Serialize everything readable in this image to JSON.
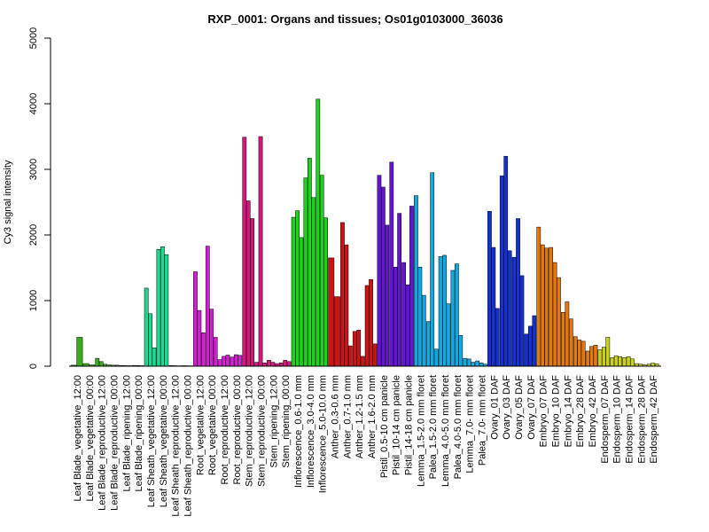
{
  "chart_data": {
    "type": "bar",
    "title": "RXP_0001: Organs and tissues; Os01g0103000_36036",
    "xlabel": "",
    "ylabel": "Cy3 signal intensity",
    "ylim": [
      0,
      5000
    ],
    "yticks": [
      0,
      1000,
      2000,
      3000,
      4000,
      5000
    ],
    "grid": false,
    "legend": "none",
    "groups": [
      {
        "label": "Leaf Blade_vegetative_12:00",
        "color": "#3aad1c",
        "values": [
          15,
          440
        ]
      },
      {
        "label": "Leaf Blade_vegetative_00:00",
        "color": "#3aad1c",
        "values": [
          40,
          20
        ]
      },
      {
        "label": "Leaf Blade_reproductive_12:00",
        "color": "#3aad1c",
        "values": [
          120,
          70,
          30
        ]
      },
      {
        "label": "Leaf Blade_reproductive_00:00",
        "color": "#3aad1c",
        "values": [
          20,
          15,
          15
        ]
      },
      {
        "label": "Leaf Blade_ripening_12:00",
        "color": "#3aad1c",
        "values": [
          10,
          8
        ]
      },
      {
        "label": "Leaf Blade_ripening_00:00",
        "color": "#3aad1c",
        "values": [
          12,
          10,
          8
        ]
      },
      {
        "label": "Leaf Sheath_vegetative_12:00",
        "color": "#1ed98f",
        "values": [
          1190,
          800,
          280
        ]
      },
      {
        "label": "Leaf Sheath_vegetative_00:00",
        "color": "#1ed98f",
        "values": [
          1780,
          1820,
          1700
        ]
      },
      {
        "label": "Leaf Sheath_reproductive_12:00",
        "color": "#1ed98f",
        "values": [
          10,
          8,
          6
        ]
      },
      {
        "label": "Leaf Sheath_reproductive_00:00",
        "color": "#1ed98f",
        "values": [
          8,
          6
        ]
      },
      {
        "label": "Root_vegetative_12:00",
        "color": "#d21fd2",
        "values": [
          1440,
          850,
          510
        ]
      },
      {
        "label": "Root_vegetative_00:00",
        "color": "#d21fd2",
        "values": [
          1830,
          870,
          440
        ]
      },
      {
        "label": "Root_reproductive_12:00",
        "color": "#d21fd2",
        "values": [
          100,
          150,
          170
        ]
      },
      {
        "label": "Root_reproductive_00:00",
        "color": "#d21fd2",
        "values": [
          140,
          175,
          165
        ]
      },
      {
        "label": "Stem_reproductive_12:00",
        "color": "#d2187a",
        "values": [
          3490,
          2520,
          2250
        ]
      },
      {
        "label": "Stem_reproductive_00:00",
        "color": "#d2187a",
        "values": [
          60,
          3500,
          50
        ]
      },
      {
        "label": "Stem_ripening_12:00",
        "color": "#d2187a",
        "values": [
          90,
          60,
          40
        ]
      },
      {
        "label": "Stem_ripening_00:00",
        "color": "#d2187a",
        "values": [
          50,
          90,
          70
        ]
      },
      {
        "label": "Inflorescence_0.6-1.0 mm",
        "color": "#1ed21e",
        "values": [
          2270,
          2370,
          1960
        ]
      },
      {
        "label": "Inflorescence_3.0-4.0 mm",
        "color": "#1ed21e",
        "values": [
          2870,
          3170,
          2570
        ]
      },
      {
        "label": "Inflorescence_5.0-10.0 mm",
        "color": "#1ed21e",
        "values": [
          4070,
          2910,
          2260
        ]
      },
      {
        "label": "Anther_0.3-0.6 mm",
        "color": "#cc1414",
        "values": [
          1650,
          1060
        ]
      },
      {
        "label": "Anther_0.7-1.0 mm",
        "color": "#cc1414",
        "values": [
          2190,
          1850,
          310
        ]
      },
      {
        "label": "Anther_1.2-1.5 mm",
        "color": "#cc1414",
        "values": [
          530,
          550,
          150
        ]
      },
      {
        "label": "Anther_1.6-2.0 mm",
        "color": "#cc1414",
        "values": [
          1230,
          1320,
          340
        ]
      },
      {
        "label": "Pistil_0.5-10 cm panicle",
        "color": "#6414d2",
        "values": [
          2910,
          2730,
          2150
        ]
      },
      {
        "label": "Pistil_10-14 cm panicle",
        "color": "#6414d2",
        "values": [
          3110,
          1510,
          2330
        ]
      },
      {
        "label": "Pistil_14-18 cm panicle",
        "color": "#6414d2",
        "values": [
          1580,
          1240,
          2440
        ]
      },
      {
        "label": "Lemma_1.5-2.0 mm floret",
        "color": "#14a8e0",
        "values": [
          2600,
          1510,
          1080
        ]
      },
      {
        "label": "Palea_1.5-2.0 mm floret",
        "color": "#14a8e0",
        "values": [
          680,
          2950,
          260
        ]
      },
      {
        "label": "Lemma_4.0-5.0 mm floret",
        "color": "#14a8e0",
        "values": [
          1670,
          1690,
          950
        ]
      },
      {
        "label": "Palea_4.0-5.0 mm floret",
        "color": "#14a8e0",
        "values": [
          1460,
          1560,
          470
        ]
      },
      {
        "label": "Lemma_7.0- mm floret",
        "color": "#14a8e0",
        "values": [
          120,
          110,
          60
        ]
      },
      {
        "label": "Palea_7.0- mm floret",
        "color": "#14a8e0",
        "values": [
          80,
          50,
          30
        ]
      },
      {
        "label": "Ovary_01 DAF",
        "color": "#1432d2",
        "values": [
          2360,
          1810,
          880
        ]
      },
      {
        "label": "Ovary_03 DAF",
        "color": "#1432d2",
        "values": [
          2900,
          3200,
          1760
        ]
      },
      {
        "label": "Ovary_05 DAF",
        "color": "#1432d2",
        "values": [
          1660,
          2250,
          1380
        ]
      },
      {
        "label": "Ovary_07 DAF",
        "color": "#1432d2",
        "values": [
          490,
          610,
          770
        ]
      },
      {
        "label": "Embryo_07 DAF",
        "color": "#e27812",
        "values": [
          2120,
          1850,
          1800
        ]
      },
      {
        "label": "Embryo_10 DAF",
        "color": "#e27812",
        "values": [
          1810,
          1580,
          1350
        ]
      },
      {
        "label": "Embryo_14 DAF",
        "color": "#e27812",
        "values": [
          820,
          980,
          720
        ]
      },
      {
        "label": "Embryo_28 DAF",
        "color": "#e27812",
        "values": [
          450,
          400,
          380
        ]
      },
      {
        "label": "Embryo_42 DAF",
        "color": "#e27812",
        "values": [
          230,
          300,
          320
        ]
      },
      {
        "label": "Endosperm_07 DAF",
        "color": "#c8d21e",
        "values": [
          250,
          290,
          440
        ]
      },
      {
        "label": "Endosperm_10 DAF",
        "color": "#c8d21e",
        "values": [
          130,
          160,
          145
        ]
      },
      {
        "label": "Endosperm_14 DAF",
        "color": "#c8d21e",
        "values": [
          130,
          145,
          110
        ]
      },
      {
        "label": "Endosperm_28 DAF",
        "color": "#c8d21e",
        "values": [
          40,
          30,
          20
        ]
      },
      {
        "label": "Endosperm_42 DAF",
        "color": "#c8d21e",
        "values": [
          30,
          45,
          35
        ]
      }
    ]
  }
}
